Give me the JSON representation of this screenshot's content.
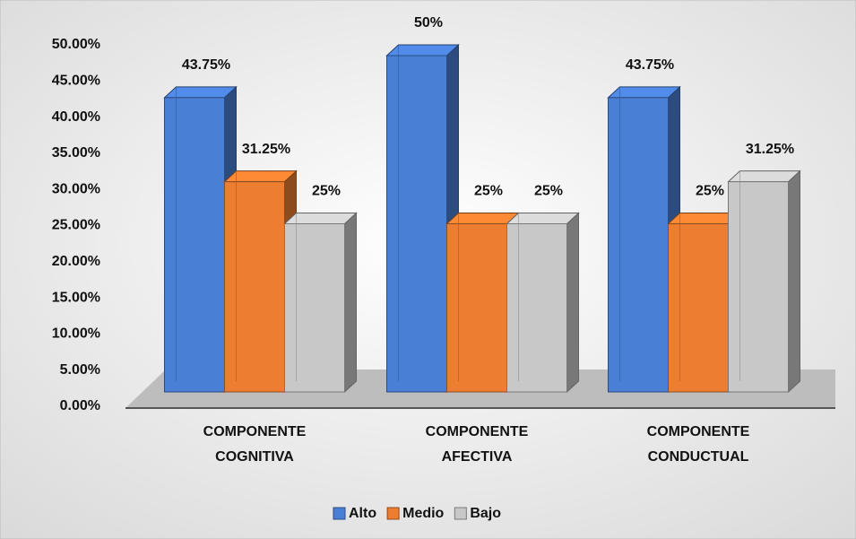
{
  "chart_data": {
    "type": "bar3d",
    "categories": [
      "COMPONENTE COGNITIVA",
      "COMPONENTE AFECTIVA",
      "COMPONENTE CONDUCTUAL"
    ],
    "series": [
      {
        "name": "Alto",
        "color": "#4a7fd6",
        "values": [
          43.75,
          50,
          43.75
        ],
        "value_labels": [
          "43.75%",
          "50%",
          "43.75%"
        ]
      },
      {
        "name": "Medio",
        "color": "#ed7d31",
        "values": [
          31.25,
          25,
          25
        ],
        "value_labels": [
          "31.25%",
          "25%",
          "25%"
        ]
      },
      {
        "name": "Bajo",
        "color": "#c8c8c8",
        "values": [
          25,
          25,
          31.25
        ],
        "value_labels": [
          "25%",
          "25%",
          "31.25%"
        ]
      }
    ],
    "ylim": [
      0,
      50
    ],
    "yticks": [
      {
        "value": 0,
        "label": "0.00%"
      },
      {
        "value": 5,
        "label": "5.00%"
      },
      {
        "value": 10,
        "label": "10.00%"
      },
      {
        "value": 15,
        "label": "15.00%"
      },
      {
        "value": 20,
        "label": "20.00%"
      },
      {
        "value": 25,
        "label": "25.00%"
      },
      {
        "value": 30,
        "label": "30.00%"
      },
      {
        "value": 35,
        "label": "35.00%"
      },
      {
        "value": 40,
        "label": "40.00%"
      },
      {
        "value": 45,
        "label": "45.00%"
      },
      {
        "value": 50,
        "label": "50.00%"
      }
    ],
    "legend": "bottom"
  }
}
